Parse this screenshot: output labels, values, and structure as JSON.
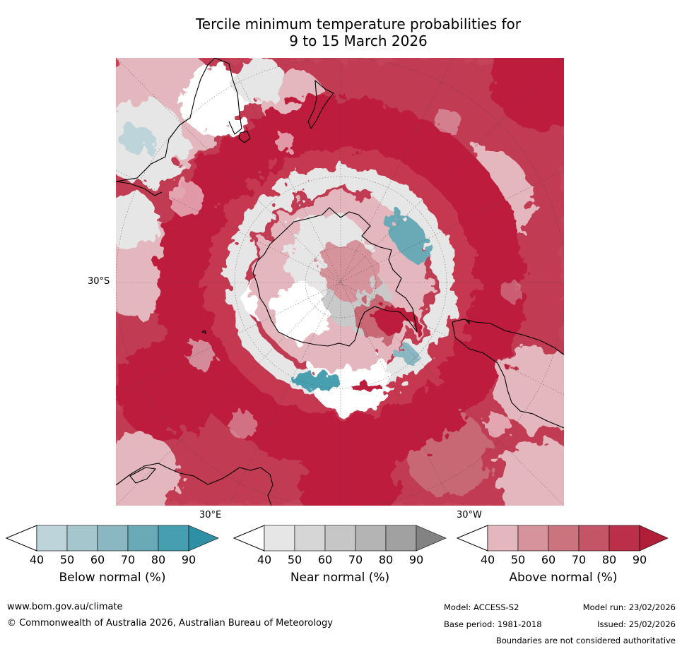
{
  "title_line1": "Tercile minimum temperature probabilities for",
  "title_line2": "9 to 15 March 2026",
  "map": {
    "lat_label": "30°S",
    "lon_label_left": "30°E",
    "lon_label_right": "30°W",
    "colors": {
      "above_light": "#e3b7bd",
      "above_mid": "#c86874",
      "above_dark": "#bd1f3c",
      "near_light": "#e6e6e6",
      "near_mid": "#c9c9c9",
      "below_light": "#bcd4da",
      "below_dark": "#3f9fb1"
    }
  },
  "colorbars": [
    {
      "title": "Below normal (%)",
      "ticks": [
        "40",
        "50",
        "60",
        "70",
        "80",
        "90"
      ],
      "colors": [
        "#bcd4da",
        "#a6c6cd",
        "#8bb7c2",
        "#69aab6",
        "#469fb0",
        "#2f8fa5"
      ]
    },
    {
      "title": "Near normal (%)",
      "ticks": [
        "40",
        "50",
        "60",
        "70",
        "80",
        "90"
      ],
      "colors": [
        "#e6e6e6",
        "#d6d6d6",
        "#c6c6c6",
        "#b4b4b4",
        "#a1a1a1",
        "#838383"
      ]
    },
    {
      "title": "Above normal (%)",
      "ticks": [
        "40",
        "50",
        "60",
        "70",
        "80",
        "90"
      ],
      "colors": [
        "#e3b7bd",
        "#d6939c",
        "#cb737f",
        "#c35566",
        "#bb2f48",
        "#b01e37"
      ]
    }
  ],
  "footer": {
    "url": "www.bom.gov.au/climate",
    "copyright": "© Commonwealth of Australia 2026, Australian Bureau of Meteorology",
    "model": "Model: ACCESS-S2",
    "model_run": "Model run: 23/02/2026",
    "base_period": "Base period: 1981-2018",
    "issued": "Issued: 25/02/2026",
    "disclaimer": "Boundaries are not considered authoritative"
  }
}
